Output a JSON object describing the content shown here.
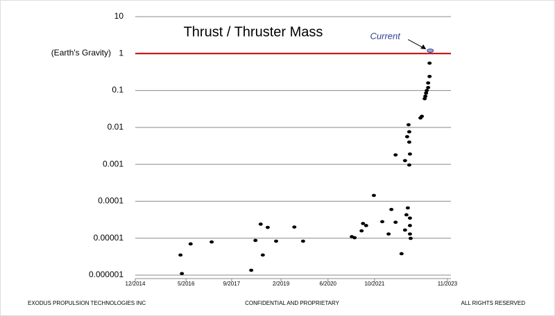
{
  "chart_data": {
    "type": "scatter",
    "title": "Thrust / Thruster Mass",
    "reference_line": {
      "value": 1,
      "label": "(Earth's Gravity)",
      "color": "#c00000"
    },
    "annotation": "Current",
    "current_color": "#2f3f8f",
    "color": "#000000",
    "log_y": true,
    "grid": true,
    "x": [
      2016.21,
      2016.25,
      2016.5,
      2017.1,
      2018.23,
      2018.35,
      2018.5,
      2018.56,
      2018.7,
      2018.94,
      2019.46,
      2019.71,
      2021.1,
      2021.18,
      2021.38,
      2021.42,
      2021.51,
      2021.73,
      2021.97,
      2022.15,
      2022.23,
      2022.35,
      2022.35,
      2022.52,
      2022.62,
      2022.62,
      2022.66,
      2022.7,
      2022.72,
      2022.68,
      2022.74,
      2022.74,
      2022.76,
      2022.74,
      2022.76,
      2022.76,
      2022.76,
      2022.78,
      2023.06,
      2023.1,
      2023.18,
      2023.2,
      2023.22,
      2023.24,
      2023.28,
      2023.28,
      2023.32,
      2023.32,
      2023.34
    ],
    "y": [
      3.5e-06,
      1.1e-06,
      7e-06,
      7.9e-06,
      1.35e-06,
      8.7e-06,
      2.4e-05,
      3.5e-06,
      1.96e-05,
      8.3e-06,
      2e-05,
      8.3e-06,
      1.1e-05,
      1.03e-05,
      1.58e-05,
      2.5e-05,
      2.2e-05,
      0.000144,
      2.8e-05,
      1.3e-05,
      6e-05,
      2.7e-05,
      0.0018,
      3.8e-06,
      1.66e-05,
      0.00126,
      4.3e-05,
      6.6e-05,
      0.0118,
      0.0056,
      0.0076,
      0.004,
      0.0019,
      0.00096,
      3.5e-05,
      2.2e-05,
      1.3e-05,
      9.9e-06,
      0.018,
      0.02,
      0.06,
      0.07,
      0.085,
      0.1,
      0.12,
      0.16,
      0.24,
      0.55,
      1.2
    ],
    "xlim": [
      2014.92,
      2023.93
    ],
    "xticks": [
      {
        "value": 2014.92,
        "label": "12/2014"
      },
      {
        "value": 2016.37,
        "label": "5/2016"
      },
      {
        "value": 2017.67,
        "label": "9/2017"
      },
      {
        "value": 2019.08,
        "label": "2/2019"
      },
      {
        "value": 2020.42,
        "label": "6/2020"
      },
      {
        "value": 2021.75,
        "label": "10/2021"
      },
      {
        "value": 2023.83,
        "label": "11/2023"
      }
    ],
    "ylim": [
      1e-06,
      10
    ],
    "yticks": [
      1e-06,
      1e-05,
      0.0001,
      0.001,
      0.01,
      0.1,
      1,
      10
    ]
  },
  "footer": {
    "left": "EXODUS PROPULSION TECHNOLOGIES INC",
    "center": "CONFIDENTIAL  AND  PROPRIETARY",
    "right": "ALL RIGHTS RESERVED"
  }
}
